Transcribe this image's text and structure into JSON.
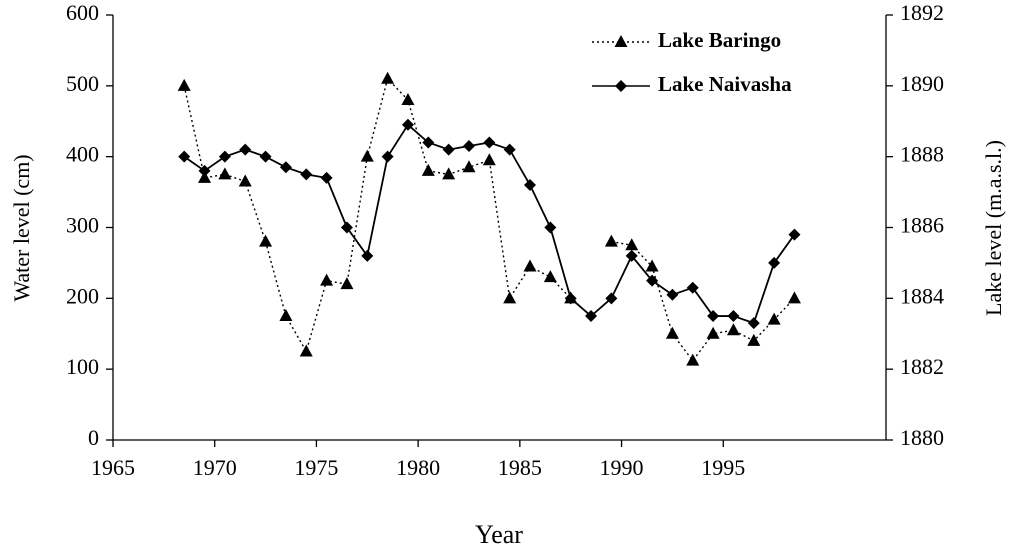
{
  "chart_data": {
    "type": "line",
    "x_label": "Year",
    "y_label": "Water level (cm)",
    "y2_label": "Lake level (m.a.s.l.)",
    "x": [
      1968.5,
      1969.5,
      1970.5,
      1971.5,
      1972.5,
      1973.5,
      1974.5,
      1975.5,
      1976.5,
      1977.5,
      1978.5,
      1979.5,
      1980.5,
      1981.5,
      1982.5,
      1983.5,
      1984.5,
      1985.5,
      1986.5,
      1987.5,
      1988.5,
      1989.5,
      1990.5,
      1991.5,
      1992.5,
      1993.5,
      1994.5,
      1995.5,
      1996.5,
      1997.5,
      1998.5
    ],
    "xlim": [
      1965,
      2003
    ],
    "xticks": [
      1965,
      1970,
      1975,
      1980,
      1985,
      1990,
      1995
    ],
    "ylim": [
      0,
      600
    ],
    "yticks": [
      0,
      100,
      200,
      300,
      400,
      500,
      600
    ],
    "y2lim": [
      1880,
      1892
    ],
    "y2ticks": [
      1880,
      1882,
      1884,
      1886,
      1888,
      1890,
      1892
    ],
    "legend": "top-right",
    "series": [
      {
        "name": "Lake Baringo",
        "color": "#000000",
        "line_style": "dotted",
        "marker": "triangle",
        "values": [
          500,
          370,
          375,
          365,
          280,
          175,
          125,
          225,
          220,
          400,
          510,
          480,
          380,
          375,
          385,
          395,
          200,
          245,
          230,
          200,
          null,
          280,
          275,
          245,
          150,
          112,
          150,
          155,
          140,
          170,
          200
        ]
      },
      {
        "name": "Lake Naivasha",
        "color": "#000000",
        "line_style": "solid",
        "marker": "diamond",
        "axis": "y2",
        "values": [
          1888,
          1887.6,
          1888,
          1888.2,
          1888,
          1887.7,
          1887.5,
          1887.4,
          1886,
          1885.2,
          1888,
          1888.9,
          1888.4,
          1888.2,
          1888.3,
          1888.4,
          1888.2,
          1887.2,
          1886,
          1884,
          1883.5,
          1884,
          1885.2,
          1884.5,
          1884.1,
          1884.3,
          1883.5,
          1883.5,
          1883.3,
          1885,
          1885.8
        ]
      }
    ]
  }
}
